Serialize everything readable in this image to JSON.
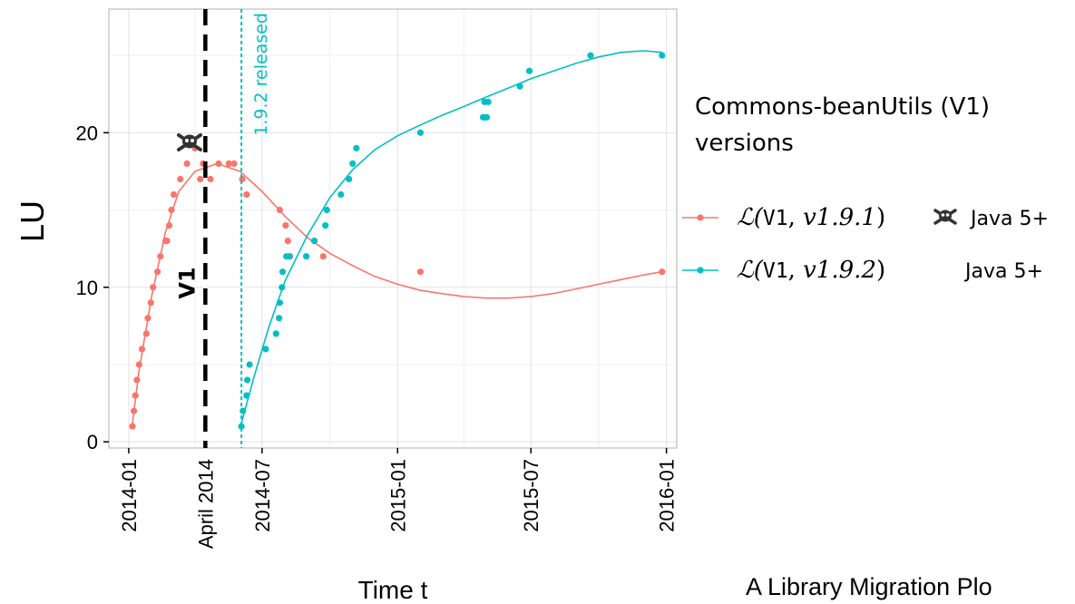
{
  "chart_data": {
    "type": "scatter",
    "xlabel": "Time t",
    "ylabel": "LU",
    "x_ticks": [
      "2014-01",
      "2014-07",
      "2015-01",
      "2015-07",
      "2016-01"
    ],
    "y_ticks": [
      0,
      10,
      20
    ],
    "xlim": [
      "2013-12-05",
      "2016-01-15"
    ],
    "ylim": [
      -0.4,
      28
    ],
    "grid": true,
    "legend": {
      "title": "Commons-beanUtils (V1)\n versions",
      "placement": "right",
      "entries": [
        {
          "math_prefix": "ℒ(",
          "lib": "V1",
          "sep": ", ",
          "version": "v1.9.1",
          "suffix": ")",
          "note": "Java 5+",
          "icon": "skull-crossbones-icon"
        },
        {
          "math_prefix": "ℒ(",
          "lib": "V1",
          "sep": ", ",
          "version": "v1.9.2",
          "suffix": ")",
          "note": "Java 5+",
          "icon": ""
        }
      ]
    },
    "vlines": [
      {
        "date": "2014-04-15",
        "label": "V1",
        "axis_label": "April 2014",
        "style": "dashed",
        "color": "#000000"
      },
      {
        "date": "2014-06-03",
        "label": "1.9.2 released",
        "style": "dotted",
        "color": "#00BFC4"
      }
    ],
    "series": [
      {
        "name": "v1.9.1",
        "color": "#F8766D",
        "points": [
          [
            "2014-01-06",
            1
          ],
          [
            "2014-01-08",
            2
          ],
          [
            "2014-01-10",
            3
          ],
          [
            "2014-01-12",
            4
          ],
          [
            "2014-01-15",
            5
          ],
          [
            "2014-01-19",
            6
          ],
          [
            "2014-01-25",
            7
          ],
          [
            "2014-01-27",
            8
          ],
          [
            "2014-01-31",
            9
          ],
          [
            "2014-02-03",
            10
          ],
          [
            "2014-02-09",
            11
          ],
          [
            "2014-02-13",
            12
          ],
          [
            "2014-02-20",
            13
          ],
          [
            "2014-02-22",
            13
          ],
          [
            "2014-02-25",
            14
          ],
          [
            "2014-02-28",
            15
          ],
          [
            "2014-03-03",
            16
          ],
          [
            "2014-03-12",
            17
          ],
          [
            "2014-03-21",
            18
          ],
          [
            "2014-04-01",
            19
          ],
          [
            "2014-04-08",
            17
          ],
          [
            "2014-04-12",
            18
          ],
          [
            "2014-04-22",
            17
          ],
          [
            "2014-05-03",
            18
          ],
          [
            "2014-05-17",
            18
          ],
          [
            "2014-05-24",
            18
          ],
          [
            "2014-06-04",
            17
          ],
          [
            "2014-06-10",
            16
          ],
          [
            "2014-07-25",
            15
          ],
          [
            "2014-08-02",
            14
          ],
          [
            "2014-08-05",
            13
          ],
          [
            "2014-08-08",
            12
          ],
          [
            "2014-09-10",
            13
          ],
          [
            "2014-09-22",
            12
          ],
          [
            "2015-02-01",
            11
          ],
          [
            "2015-12-26",
            11
          ]
        ],
        "smooth": [
          [
            "2014-01-06",
            1.2
          ],
          [
            "2014-01-15",
            4.6
          ],
          [
            "2014-02-01",
            9.4
          ],
          [
            "2014-02-20",
            13.6
          ],
          [
            "2014-03-10",
            16.2
          ],
          [
            "2014-04-01",
            17.5
          ],
          [
            "2014-05-01",
            18.0
          ],
          [
            "2014-06-01",
            17.5
          ],
          [
            "2014-07-01",
            16.2
          ],
          [
            "2014-08-01",
            14.6
          ],
          [
            "2014-09-01",
            13.2
          ],
          [
            "2014-10-01",
            12.2
          ],
          [
            "2014-11-01",
            11.4
          ],
          [
            "2014-12-01",
            10.7
          ],
          [
            "2015-01-01",
            10.2
          ],
          [
            "2015-02-01",
            9.8
          ],
          [
            "2015-03-01",
            9.6
          ],
          [
            "2015-04-01",
            9.4
          ],
          [
            "2015-05-01",
            9.3
          ],
          [
            "2015-06-01",
            9.3
          ],
          [
            "2015-07-01",
            9.4
          ],
          [
            "2015-08-01",
            9.6
          ],
          [
            "2015-09-01",
            9.9
          ],
          [
            "2015-10-01",
            10.2
          ],
          [
            "2015-11-01",
            10.5
          ],
          [
            "2015-12-01",
            10.8
          ],
          [
            "2015-12-26",
            11.0
          ]
        ]
      },
      {
        "name": "v1.9.2",
        "color": "#00BFC4",
        "points": [
          [
            "2014-06-03",
            1
          ],
          [
            "2014-06-05",
            2
          ],
          [
            "2014-06-10",
            3
          ],
          [
            "2014-06-11",
            4
          ],
          [
            "2014-06-14",
            5
          ],
          [
            "2014-07-06",
            6
          ],
          [
            "2014-07-20",
            7
          ],
          [
            "2014-07-24",
            8
          ],
          [
            "2014-07-25",
            9
          ],
          [
            "2014-07-28",
            10
          ],
          [
            "2014-07-29",
            11
          ],
          [
            "2014-08-03",
            12
          ],
          [
            "2014-08-07",
            12
          ],
          [
            "2014-08-30",
            12
          ],
          [
            "2014-09-10",
            13
          ],
          [
            "2014-09-25",
            14
          ],
          [
            "2014-09-27",
            15
          ],
          [
            "2014-10-16",
            16
          ],
          [
            "2014-10-27",
            17
          ],
          [
            "2014-11-01",
            18
          ],
          [
            "2014-11-06",
            19
          ],
          [
            "2015-02-01",
            20
          ],
          [
            "2015-04-27",
            21
          ],
          [
            "2015-04-29",
            21
          ],
          [
            "2015-05-02",
            21
          ],
          [
            "2015-04-29",
            22
          ],
          [
            "2015-05-04",
            22
          ],
          [
            "2015-06-16",
            23
          ],
          [
            "2015-06-29",
            24
          ],
          [
            "2015-09-20",
            25
          ],
          [
            "2015-12-26",
            25
          ]
        ],
        "smooth": [
          [
            "2014-06-03",
            1.2
          ],
          [
            "2014-06-20",
            4.2
          ],
          [
            "2014-07-10",
            7.4
          ],
          [
            "2014-08-01",
            10.4
          ],
          [
            "2014-09-01",
            13.4
          ],
          [
            "2014-10-01",
            15.8
          ],
          [
            "2014-11-01",
            17.6
          ],
          [
            "2014-12-01",
            18.9
          ],
          [
            "2015-01-01",
            19.8
          ],
          [
            "2015-02-01",
            20.5
          ],
          [
            "2015-03-01",
            21.1
          ],
          [
            "2015-04-01",
            21.7
          ],
          [
            "2015-05-01",
            22.3
          ],
          [
            "2015-06-01",
            22.9
          ],
          [
            "2015-07-01",
            23.5
          ],
          [
            "2015-08-01",
            24.0
          ],
          [
            "2015-09-01",
            24.5
          ],
          [
            "2015-10-01",
            24.9
          ],
          [
            "2015-11-01",
            25.2
          ],
          [
            "2015-12-01",
            25.3
          ],
          [
            "2015-12-26",
            25.2
          ]
        ]
      }
    ]
  },
  "caption": "A Library Migration Plo"
}
